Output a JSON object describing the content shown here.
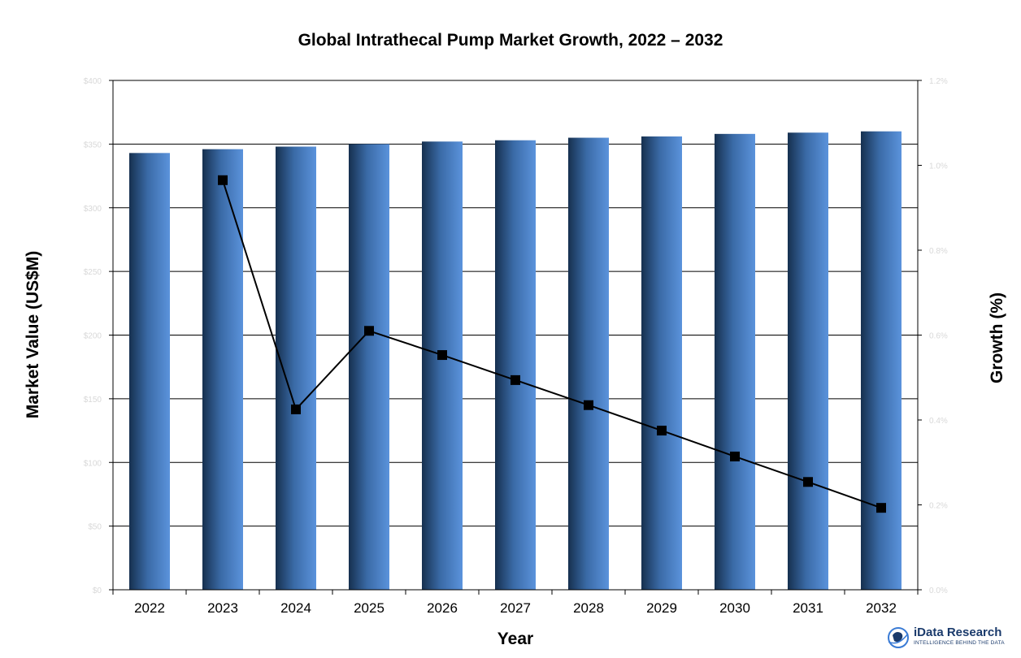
{
  "chart_data": {
    "type": "bar+line",
    "title": "Global Intrathecal Pump Market Growth, 2022 – 2032",
    "xlabel": "Year",
    "ylabel_left": "Market  Value (US$M)",
    "ylabel_right": "Growth (%)",
    "categories": [
      "2022",
      "2023",
      "2024",
      "2025",
      "2026",
      "2027",
      "2028",
      "2029",
      "2030",
      "2031",
      "2032"
    ],
    "left_axis": {
      "ylim": [
        0,
        400
      ],
      "ticks": [
        0,
        50,
        100,
        150,
        200,
        250,
        300,
        350,
        400
      ],
      "tick_labels": [
        "$0",
        "$50",
        "$100",
        "$150",
        "$200",
        "$250",
        "$300",
        "$350",
        "$400"
      ]
    },
    "right_axis": {
      "ylim": [
        0,
        1.2
      ],
      "ticks": [
        0,
        0.2,
        0.4,
        0.6,
        0.8,
        1.0,
        1.2
      ],
      "tick_labels": [
        "0.0%",
        "0.2%",
        "0.4%",
        "0.6%",
        "0.8%",
        "1.0%",
        "1.2%"
      ]
    },
    "series": [
      {
        "type": "bar",
        "axis": "left",
        "values": [
          343,
          346,
          348,
          350,
          352,
          353,
          355,
          356,
          358,
          359,
          360
        ]
      },
      {
        "type": "line",
        "axis": "right",
        "x": [
          "2023",
          "2024",
          "2025",
          "2026",
          "2027",
          "2028",
          "2029",
          "2030",
          "2031",
          "2032"
        ],
        "values": [
          0.965,
          0.425,
          0.61,
          0.553,
          0.494,
          0.435,
          0.375,
          0.314,
          0.254,
          0.193
        ]
      }
    ],
    "grid": true,
    "legend": "none"
  },
  "branding": {
    "name": "iData Research",
    "tagline": "INTELLIGENCE BEHIND THE DATA",
    "color": "#1a3a6b"
  }
}
